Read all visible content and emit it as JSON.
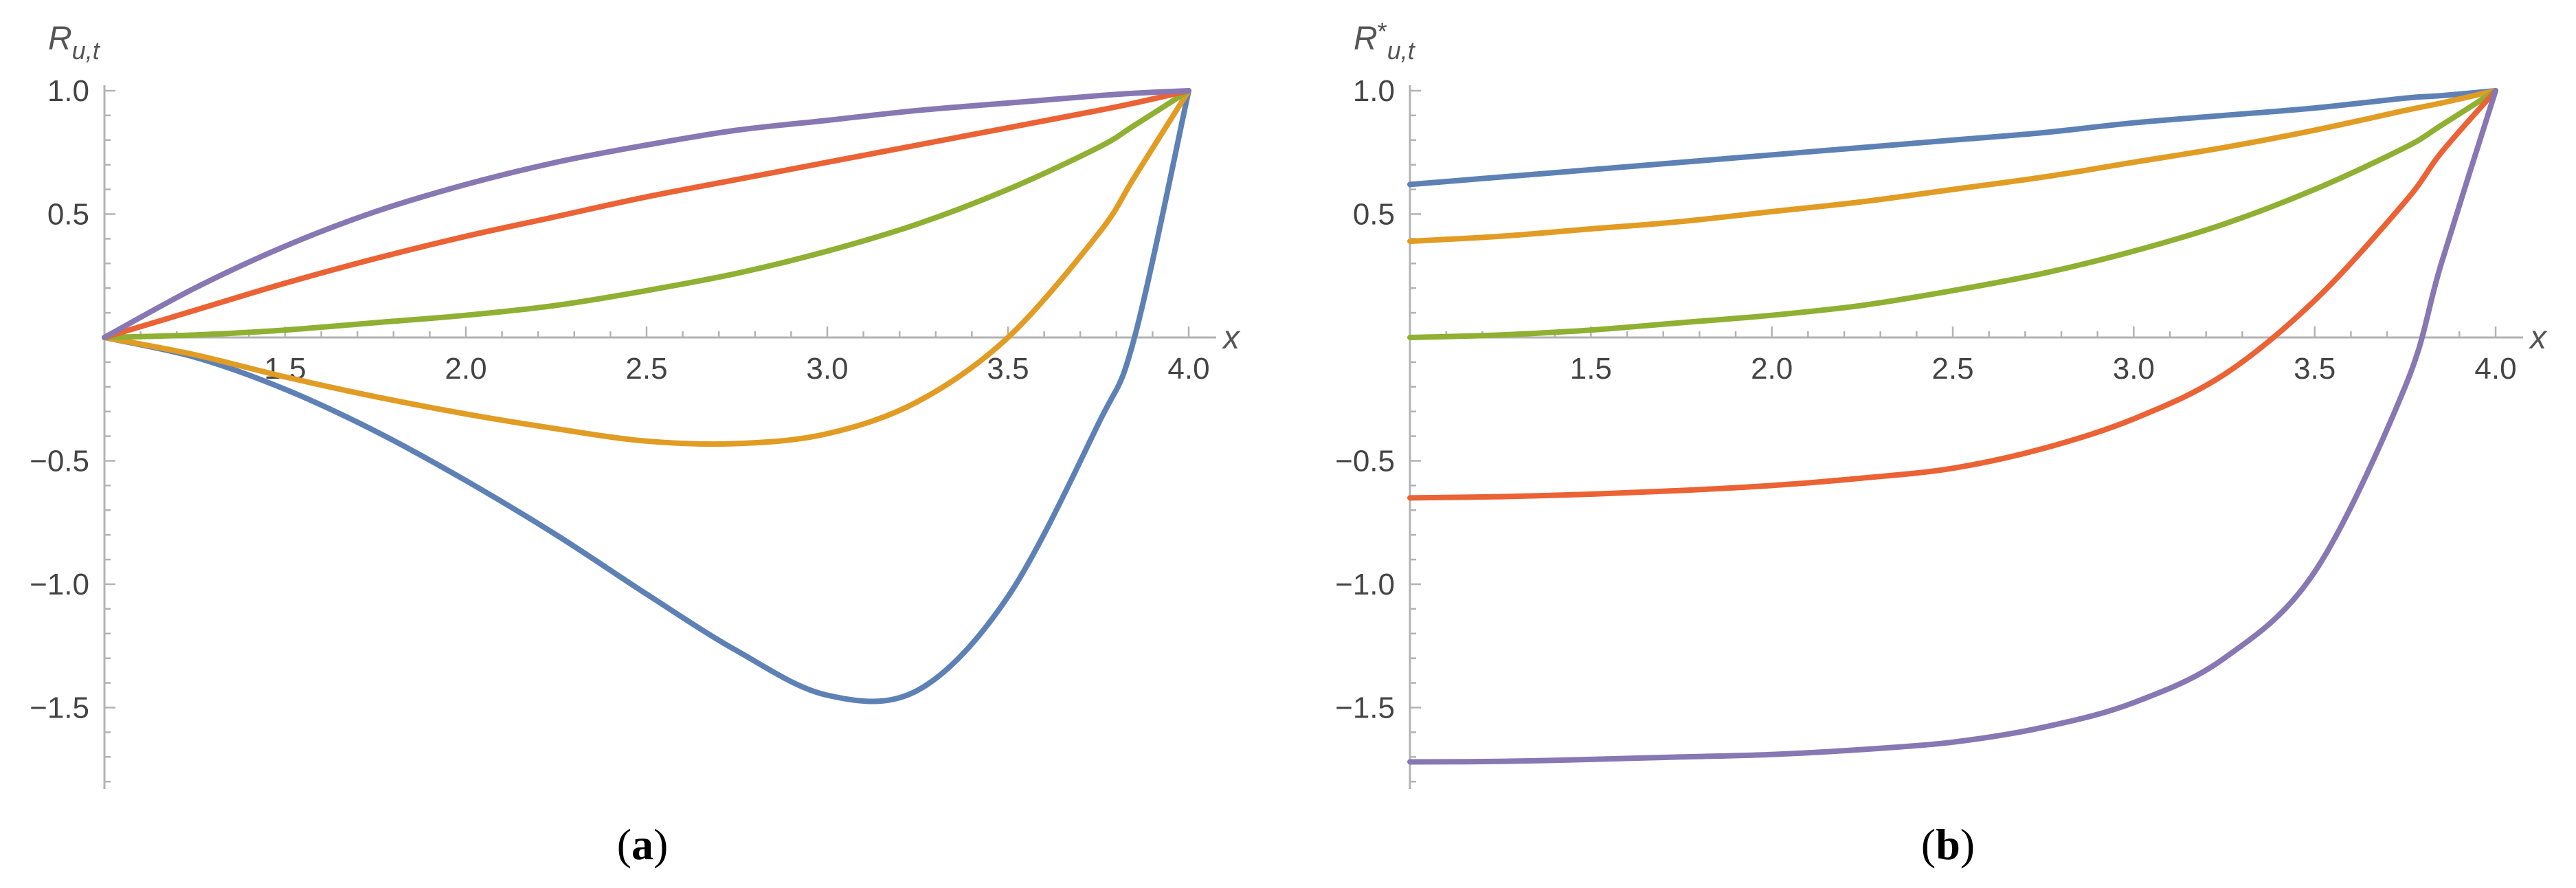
{
  "colors": {
    "axis": "#b3b3b3",
    "tick_text": "#444444",
    "series": [
      "#5e81b5",
      "#e19c24",
      "#8fb032",
      "#eb6235",
      "#8778b3"
    ]
  },
  "chart_data": [
    {
      "type": "line",
      "panel_label": {
        "open": "(",
        "letter": "a",
        "close": ")"
      },
      "ylabel": {
        "main": "R",
        "sub": "u,t"
      },
      "xlabel": "x",
      "xlim": [
        1.0,
        4.0
      ],
      "ylim": [
        -1.8,
        1.0
      ],
      "xticks": [
        "1.5",
        "2.0",
        "2.5",
        "3.0",
        "3.5",
        "4.0"
      ],
      "yticks": [
        "1.0",
        "0.5",
        "-0.5",
        "-1.0",
        "-1.5"
      ],
      "grid": false,
      "x": [
        1.0,
        1.25,
        1.5,
        1.75,
        2.0,
        2.25,
        2.5,
        2.75,
        3.0,
        3.25,
        3.5,
        3.75,
        3.85,
        4.0
      ],
      "series": [
        {
          "values": [
            0.0,
            -0.08,
            -0.21,
            -0.38,
            -0.58,
            -0.8,
            -1.04,
            -1.27,
            -1.45,
            -1.43,
            -1.05,
            -0.35,
            0.0,
            1.0
          ]
        },
        {
          "values": [
            0.0,
            -0.07,
            -0.16,
            -0.24,
            -0.31,
            -0.37,
            -0.42,
            -0.43,
            -0.39,
            -0.26,
            0.0,
            0.42,
            0.65,
            1.0
          ]
        },
        {
          "values": [
            0.0,
            0.01,
            0.03,
            0.06,
            0.09,
            0.13,
            0.19,
            0.26,
            0.35,
            0.46,
            0.6,
            0.77,
            0.86,
            1.0
          ]
        },
        {
          "values": [
            0.0,
            0.11,
            0.22,
            0.32,
            0.41,
            0.49,
            0.57,
            0.64,
            0.71,
            0.78,
            0.85,
            0.92,
            0.95,
            1.0
          ]
        },
        {
          "values": [
            0.0,
            0.2,
            0.37,
            0.51,
            0.62,
            0.71,
            0.78,
            0.84,
            0.88,
            0.92,
            0.95,
            0.98,
            0.99,
            1.0
          ]
        }
      ]
    },
    {
      "type": "line",
      "panel_label": {
        "open": "(",
        "letter": "b",
        "close": ")"
      },
      "ylabel": {
        "main": "R",
        "sup": "*",
        "sub": "u,t"
      },
      "xlabel": "x",
      "xlim": [
        1.0,
        4.0
      ],
      "ylim": [
        -1.8,
        1.0
      ],
      "xticks": [
        "1.5",
        "2.0",
        "2.5",
        "3.0",
        "3.5",
        "4.0"
      ],
      "yticks": [
        "1.0",
        "0.5",
        "-0.5",
        "-1.0",
        "-1.5"
      ],
      "grid": false,
      "x": [
        1.0,
        1.25,
        1.5,
        1.75,
        2.0,
        2.25,
        2.5,
        2.75,
        3.0,
        3.25,
        3.5,
        3.75,
        3.85,
        4.0
      ],
      "series": [
        {
          "values": [
            0.62,
            0.65,
            0.68,
            0.71,
            0.74,
            0.77,
            0.8,
            0.83,
            0.87,
            0.9,
            0.93,
            0.97,
            0.98,
            1.0
          ]
        },
        {
          "values": [
            0.39,
            0.41,
            0.44,
            0.47,
            0.51,
            0.55,
            0.6,
            0.65,
            0.71,
            0.77,
            0.84,
            0.92,
            0.95,
            1.0
          ]
        },
        {
          "values": [
            0.0,
            0.01,
            0.03,
            0.06,
            0.09,
            0.13,
            0.19,
            0.26,
            0.35,
            0.46,
            0.6,
            0.77,
            0.86,
            1.0
          ]
        },
        {
          "values": [
            -0.65,
            -0.645,
            -0.635,
            -0.62,
            -0.6,
            -0.57,
            -0.53,
            -0.45,
            -0.33,
            -0.15,
            0.15,
            0.55,
            0.75,
            1.0
          ]
        },
        {
          "values": [
            -1.72,
            -1.718,
            -1.71,
            -1.7,
            -1.69,
            -1.67,
            -1.64,
            -1.58,
            -1.48,
            -1.3,
            -0.95,
            -0.2,
            0.3,
            1.0
          ]
        }
      ]
    }
  ]
}
